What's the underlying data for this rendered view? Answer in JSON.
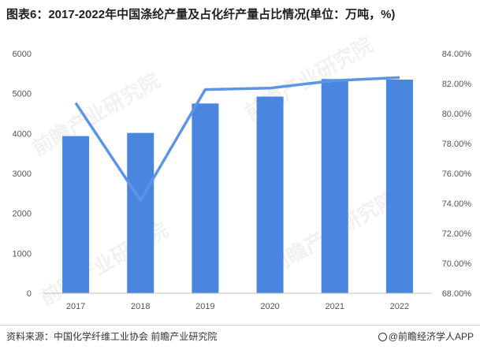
{
  "title": "图表6：2017-2022年中国涤纶产量及占化纤产量占比情况(单位：万吨，%)",
  "watermark": "前瞻产业研究院",
  "source": "资料来源：中国化学纤维工业协会 前瞻产业研究院",
  "brand": "@前瞻经济学人APP",
  "colors": {
    "bar": "#4a86e0",
    "line": "#5b95e6"
  },
  "chart_data": {
    "type": "bar",
    "categories": [
      "2017",
      "2018",
      "2019",
      "2020",
      "2021",
      "2022"
    ],
    "series": [
      {
        "type": "bar",
        "axis": "left",
        "values": [
          3934,
          4014,
          4751,
          4923,
          5363,
          5349
        ]
      },
      {
        "type": "line",
        "axis": "right",
        "values": [
          80.7,
          74.2,
          81.6,
          81.7,
          82.2,
          82.4
        ]
      }
    ],
    "ylim_left": [
      0,
      6000
    ],
    "yticks_left": [
      "0",
      "1000",
      "2000",
      "3000",
      "4000",
      "5000",
      "6000"
    ],
    "ylim_right": [
      68,
      84
    ],
    "yticks_right": [
      "68.00%",
      "70.00%",
      "72.00%",
      "74.00%",
      "76.00%",
      "78.00%",
      "80.00%",
      "82.00%",
      "84.00%"
    ],
    "grid": false,
    "legend": "none"
  }
}
